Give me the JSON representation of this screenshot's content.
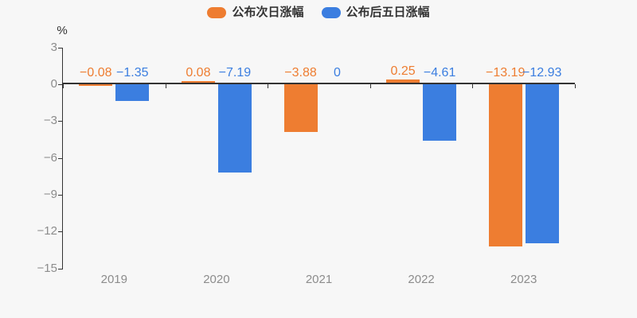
{
  "legend": {
    "items": [
      {
        "label": "公布次日涨幅",
        "color": "#ee7d31"
      },
      {
        "label": "公布后五日涨幅",
        "color": "#3b7ee0"
      }
    ]
  },
  "chart_data": {
    "type": "bar",
    "title": "",
    "categories": [
      "2019",
      "2020",
      "2021",
      "2022",
      "2023"
    ],
    "series": [
      {
        "name": "公布次日涨幅",
        "color": "#ee7d31",
        "values": [
          -0.08,
          0.08,
          -3.88,
          0.25,
          -13.19
        ],
        "value_labels": [
          "−0.08",
          "0.08",
          "−3.88",
          "0.25",
          "−13.19"
        ]
      },
      {
        "name": "公布后五日涨幅",
        "color": "#3b7ee0",
        "values": [
          -1.35,
          -7.19,
          0,
          -4.61,
          -12.93
        ],
        "value_labels": [
          "−1.35",
          "−7.19",
          "0",
          "−4.61",
          "−12.93"
        ]
      }
    ],
    "xlabel": "",
    "ylabel": "%",
    "ylim": [
      -15,
      3
    ],
    "y_ticks": [
      {
        "value": 3,
        "label": "3"
      },
      {
        "value": 0,
        "label": "0"
      },
      {
        "value": -3,
        "label": "−3"
      },
      {
        "value": -6,
        "label": "−6"
      },
      {
        "value": -9,
        "label": "−9"
      },
      {
        "value": -12,
        "label": "−12"
      },
      {
        "value": -15,
        "label": "−15"
      }
    ],
    "grid": false,
    "legend_position": "top"
  },
  "colors": {
    "background": "#f7f7f7",
    "axis_line": "#333333",
    "tick_label": "#8c8c8c",
    "legend_text": "#333333"
  }
}
